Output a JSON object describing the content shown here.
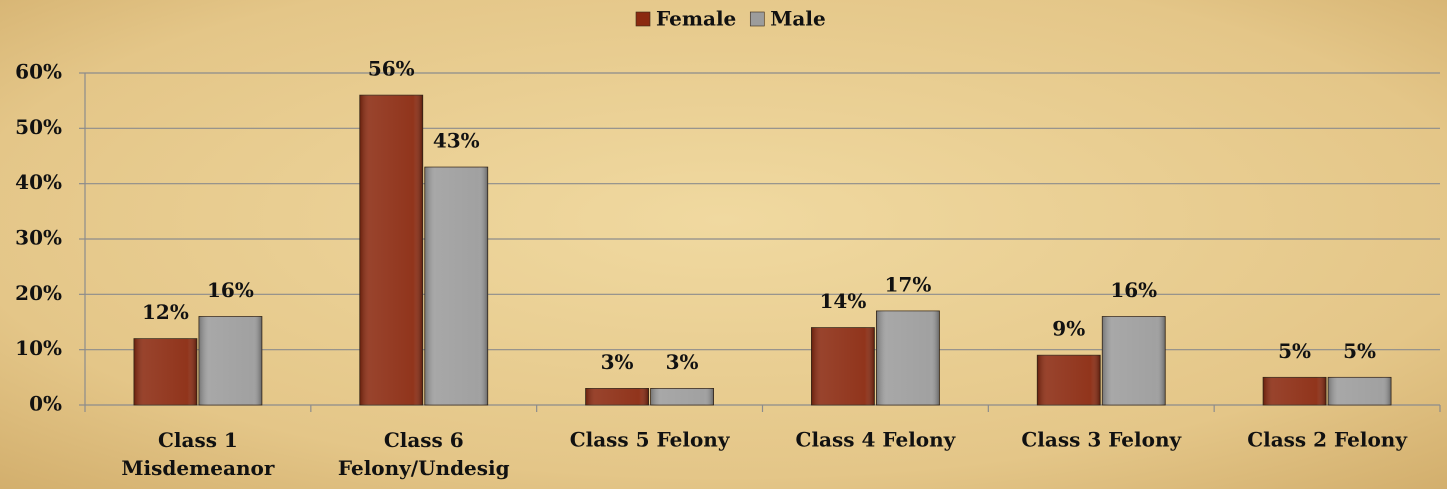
{
  "chart_data": {
    "type": "bar",
    "categories": [
      "Class 1\nMisdemeanor",
      "Class 6\nFelony/Undesig",
      "Class 5 Felony",
      "Class 4 Felony",
      "Class 3 Felony",
      "Class 2 Felony"
    ],
    "series": [
      {
        "name": "Female",
        "color": "#8b2a10",
        "values": [
          12,
          56,
          3,
          14,
          9,
          5
        ],
        "value_labels": [
          "12%",
          "56%",
          "3%",
          "14%",
          "9%",
          "5%"
        ]
      },
      {
        "name": "Male",
        "color": "#9c9c9c",
        "values": [
          16,
          43,
          3,
          17,
          16,
          5
        ],
        "value_labels": [
          "16%",
          "43%",
          "3%",
          "17%",
          "16%",
          "5%"
        ]
      }
    ],
    "ylim": [
      0,
      60
    ],
    "yticks": [
      {
        "value": 0,
        "label": "0%"
      },
      {
        "value": 10,
        "label": "10%"
      },
      {
        "value": 20,
        "label": "20%"
      },
      {
        "value": 30,
        "label": "30%"
      },
      {
        "value": 40,
        "label": "40%"
      },
      {
        "value": 50,
        "label": "50%"
      },
      {
        "value": 60,
        "label": "60%"
      }
    ],
    "grid": true,
    "legend": "top"
  }
}
